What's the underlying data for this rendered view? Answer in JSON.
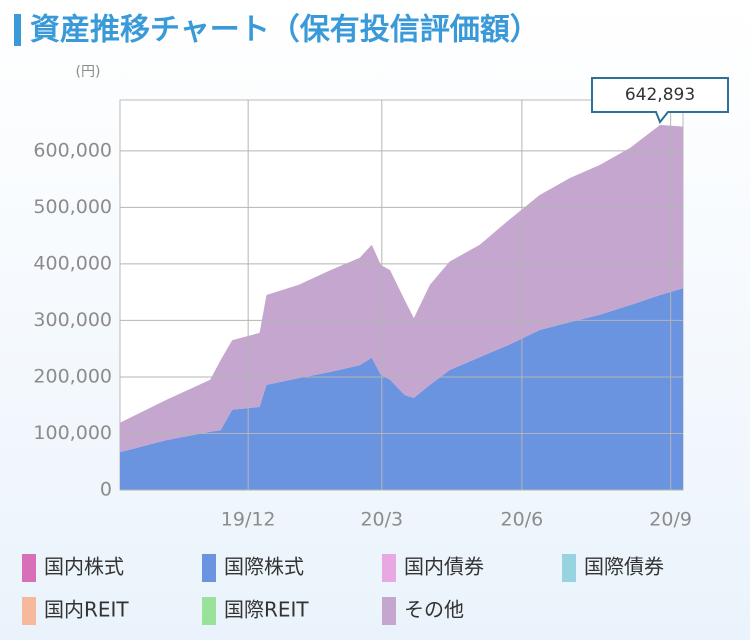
{
  "chart_data": {
    "type": "stacked-area",
    "title": "資産推移チャート（保有投信評価額）",
    "y_label": "(円)",
    "annotation": "642,893",
    "x": [
      0,
      1.0,
      1.97,
      2.2,
      2.45,
      3.05,
      3.2,
      3.9,
      4.6,
      5.24,
      5.5,
      5.7,
      5.9,
      6.22,
      6.42,
      6.77,
      7.2,
      7.86,
      8.5,
      9.17,
      9.83,
      10.48,
      11.14,
      11.8,
      12.3
    ],
    "xlim": [
      0,
      12.3
    ],
    "xticks": [
      {
        "value": 2.8,
        "label": "19/12"
      },
      {
        "value": 5.72,
        "label": "20/3"
      },
      {
        "value": 8.78,
        "label": "20/6"
      },
      {
        "value": 12.03,
        "label": "20/9"
      }
    ],
    "ylim": [
      0,
      690000
    ],
    "yticks": [
      0,
      {
        "value": 100000,
        "label": "100,000"
      },
      {
        "value": 200000,
        "label": "200,000"
      },
      {
        "value": 300000,
        "label": "300,000"
      },
      {
        "value": 400000,
        "label": "400,000"
      },
      {
        "value": 500000,
        "label": "500,000"
      },
      {
        "value": 600000,
        "label": "600,000"
      }
    ],
    "grid": true,
    "series": [
      {
        "name": "国内株式",
        "color": "#d870b9",
        "values": [
          0,
          0,
          0,
          0,
          0,
          0,
          0,
          0,
          0,
          0,
          0,
          0,
          0,
          0,
          0,
          0,
          0,
          0,
          0,
          0,
          0,
          0,
          0,
          0,
          0
        ]
      },
      {
        "name": "国際株式",
        "color": "#6a93e0",
        "values": [
          67000,
          88000,
          103000,
          106000,
          142000,
          147000,
          186000,
          198000,
          209000,
          221000,
          234000,
          204000,
          195000,
          168000,
          163000,
          186000,
          212000,
          235000,
          257000,
          283000,
          297000,
          310000,
          327000,
          345000,
          357000
        ]
      },
      {
        "name": "国内債券",
        "color": "#e8a8e2",
        "values": [
          0,
          0,
          0,
          0,
          0,
          0,
          0,
          0,
          0,
          0,
          0,
          0,
          0,
          0,
          0,
          0,
          0,
          0,
          0,
          0,
          0,
          0,
          0,
          0,
          0
        ]
      },
      {
        "name": "国際債券",
        "color": "#98d4e0",
        "values": [
          0,
          0,
          0,
          0,
          0,
          0,
          0,
          0,
          0,
          0,
          0,
          0,
          0,
          0,
          0,
          0,
          0,
          0,
          0,
          0,
          0,
          0,
          0,
          0,
          0
        ]
      },
      {
        "name": "国内REIT",
        "color": "#f7b99c",
        "values": [
          0,
          0,
          0,
          0,
          0,
          0,
          0,
          0,
          0,
          0,
          0,
          0,
          0,
          0,
          0,
          0,
          0,
          0,
          0,
          0,
          0,
          0,
          0,
          0,
          0
        ]
      },
      {
        "name": "国際REIT",
        "color": "#98e299",
        "values": [
          0,
          0,
          0,
          0,
          0,
          0,
          0,
          0,
          0,
          0,
          0,
          0,
          0,
          0,
          0,
          0,
          0,
          0,
          0,
          0,
          0,
          0,
          0,
          0,
          0
        ]
      },
      {
        "name": "その他",
        "color": "#c4a6cf",
        "values": [
          52000,
          71000,
          92000,
          124000,
          123000,
          131000,
          159000,
          165000,
          180000,
          190000,
          200000,
          194000,
          194000,
          168000,
          141000,
          177000,
          192000,
          199000,
          221000,
          239000,
          255000,
          265000,
          278000,
          301000,
          286000
        ]
      }
    ]
  }
}
